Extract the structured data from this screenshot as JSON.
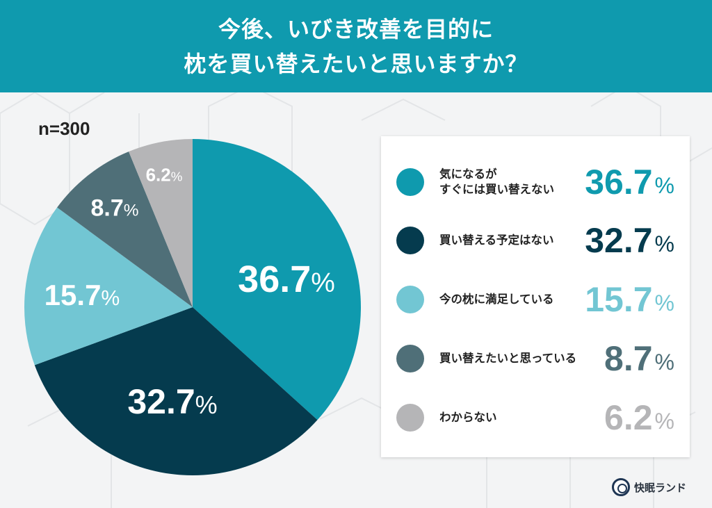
{
  "header": {
    "title_line1": "今後、いびき改善を目的に",
    "title_line2": "枕を買い替えたいと思いますか？",
    "bg_color": "#0f9aae"
  },
  "sample_size": "n=300",
  "pie_labels": [
    {
      "value": "36.7",
      "pct": "%"
    },
    {
      "value": "32.7",
      "pct": "%"
    },
    {
      "value": "15.7",
      "pct": "%"
    },
    {
      "value": "8.7",
      "pct": "%"
    },
    {
      "value": "6.2",
      "pct": "%"
    }
  ],
  "legend": {
    "items": [
      {
        "label": "気になるが\nすぐには買い替えない",
        "value": "36.7",
        "pct": "%",
        "color": "#0f9aae"
      },
      {
        "label": "買い替える予定はない",
        "value": "32.7",
        "pct": "%",
        "color": "#053b4e"
      },
      {
        "label": "今の枕に満足している",
        "value": "15.7",
        "pct": "%",
        "color": "#72c6d3"
      },
      {
        "label": "買い替えたいと思っている",
        "value": "8.7",
        "pct": "%",
        "color": "#4f6f78"
      },
      {
        "label": "わからない",
        "value": "6.2",
        "pct": "%",
        "color": "#b5b5b7"
      }
    ]
  },
  "brand": {
    "name": "快眠ランド"
  },
  "chart_data": {
    "type": "pie",
    "title": "今後、いびき改善を目的に枕を買い替えたいと思いますか？",
    "subtitle": "n=300",
    "categories": [
      "気になるがすぐには買い替えない",
      "買い替える予定はない",
      "今の枕に満足している",
      "買い替えたいと思っている",
      "わからない"
    ],
    "values": [
      36.7,
      32.7,
      15.7,
      8.7,
      6.2
    ],
    "colors": [
      "#0f9aae",
      "#053b4e",
      "#72c6d3",
      "#4f6f78",
      "#b5b5b7"
    ],
    "unit": "%",
    "start_angle": "12 o'clock, clockwise",
    "legend_position": "right"
  }
}
